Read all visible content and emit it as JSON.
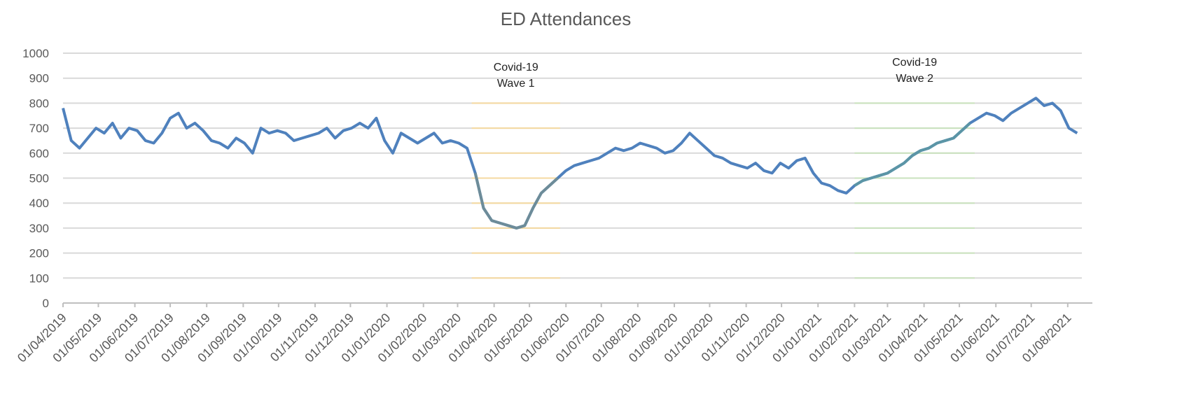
{
  "chart_data": {
    "type": "line",
    "title": "ED Attendances",
    "x": [
      "01/04/2019",
      "08/04/2019",
      "15/04/2019",
      "22/04/2019",
      "29/04/2019",
      "06/05/2019",
      "13/05/2019",
      "20/05/2019",
      "27/05/2019",
      "03/06/2019",
      "10/06/2019",
      "17/06/2019",
      "24/06/2019",
      "01/07/2019",
      "08/07/2019",
      "15/07/2019",
      "22/07/2019",
      "29/07/2019",
      "05/08/2019",
      "12/08/2019",
      "19/08/2019",
      "26/08/2019",
      "02/09/2019",
      "09/09/2019",
      "16/09/2019",
      "23/09/2019",
      "30/09/2019",
      "07/10/2019",
      "14/10/2019",
      "21/10/2019",
      "28/10/2019",
      "04/11/2019",
      "11/11/2019",
      "18/11/2019",
      "25/11/2019",
      "02/12/2019",
      "09/12/2019",
      "16/12/2019",
      "23/12/2019",
      "30/12/2019",
      "06/01/2020",
      "13/01/2020",
      "20/01/2020",
      "27/01/2020",
      "03/02/2020",
      "10/02/2020",
      "17/02/2020",
      "24/02/2020",
      "02/03/2020",
      "09/03/2020",
      "16/03/2020",
      "23/03/2020",
      "30/03/2020",
      "06/04/2020",
      "13/04/2020",
      "20/04/2020",
      "27/04/2020",
      "04/05/2020",
      "11/05/2020",
      "18/05/2020",
      "25/05/2020",
      "01/06/2020",
      "08/06/2020",
      "15/06/2020",
      "22/06/2020",
      "29/06/2020",
      "06/07/2020",
      "13/07/2020",
      "20/07/2020",
      "27/07/2020",
      "03/08/2020",
      "10/08/2020",
      "17/08/2020",
      "24/08/2020",
      "31/08/2020",
      "07/09/2020",
      "14/09/2020",
      "21/09/2020",
      "28/09/2020",
      "05/10/2020",
      "12/10/2020",
      "19/10/2020",
      "26/10/2020",
      "02/11/2020",
      "09/11/2020",
      "16/11/2020",
      "23/11/2020",
      "30/11/2020",
      "07/12/2020",
      "14/12/2020",
      "21/12/2020",
      "28/12/2020",
      "04/01/2021",
      "11/01/2021",
      "18/01/2021",
      "25/01/2021",
      "01/02/2021",
      "08/02/2021",
      "15/02/2021",
      "22/02/2021",
      "01/03/2021",
      "08/03/2021",
      "15/03/2021",
      "22/03/2021",
      "29/03/2021",
      "05/04/2021",
      "12/04/2021",
      "19/04/2021",
      "26/04/2021",
      "03/05/2021",
      "10/05/2021",
      "17/05/2021",
      "24/05/2021",
      "31/05/2021",
      "07/06/2021",
      "14/06/2021",
      "21/06/2021",
      "28/06/2021",
      "05/07/2021",
      "12/07/2021",
      "19/07/2021",
      "26/07/2021",
      "02/08/2021",
      "09/08/2021"
    ],
    "series": [
      {
        "color": "#4f81bd",
        "values": [
          780,
          650,
          620,
          660,
          700,
          680,
          720,
          660,
          700,
          690,
          650,
          640,
          680,
          740,
          760,
          700,
          720,
          690,
          650,
          640,
          620,
          660,
          640,
          600,
          700,
          680,
          690,
          680,
          650,
          660,
          670,
          680,
          700,
          660,
          690,
          700,
          720,
          700,
          740,
          650,
          600,
          680,
          660,
          640,
          660,
          680,
          640,
          650,
          640,
          620,
          520,
          380,
          330,
          320,
          310,
          300,
          310,
          380,
          440,
          470,
          500,
          530,
          550,
          560,
          570,
          580,
          600,
          620,
          610,
          620,
          640,
          630,
          620,
          600,
          610,
          640,
          680,
          650,
          620,
          590,
          580,
          560,
          550,
          540,
          560,
          530,
          520,
          560,
          540,
          570,
          580,
          520,
          480,
          470,
          450,
          440,
          470,
          490,
          500,
          510,
          520,
          540,
          560,
          590,
          610,
          620,
          640,
          650,
          660,
          690,
          720,
          740,
          760,
          750,
          730,
          760,
          780,
          800,
          820,
          790,
          800,
          770,
          700,
          680
        ]
      }
    ],
    "xlim": [
      "01/04/2019",
      "13/08/2021"
    ],
    "xticks": [
      "01/04/2019",
      "01/05/2019",
      "01/06/2019",
      "01/07/2019",
      "01/08/2019",
      "01/09/2019",
      "01/10/2019",
      "01/11/2019",
      "01/12/2019",
      "01/01/2020",
      "01/02/2020",
      "01/03/2020",
      "01/04/2020",
      "01/05/2020",
      "01/06/2020",
      "01/07/2020",
      "01/08/2020",
      "01/09/2020",
      "01/10/2020",
      "01/11/2020",
      "01/12/2020",
      "01/01/2021",
      "01/02/2021",
      "01/03/2021",
      "01/04/2021",
      "01/05/2021",
      "01/06/2021",
      "01/07/2021",
      "01/08/2021"
    ],
    "ylim": [
      0,
      1000
    ],
    "yticks": [
      0,
      100,
      200,
      300,
      400,
      500,
      600,
      700,
      800,
      900,
      1000
    ],
    "grid": true,
    "annotations": [
      {
        "text": [
          "Covid-19",
          "Wave 1"
        ],
        "start": "13/03/2020",
        "end": "27/05/2020",
        "color": "#f5d9a0",
        "line_color": "#6d8c99"
      },
      {
        "text": [
          "Covid-19",
          "Wave 2"
        ],
        "start": "01/02/2021",
        "end": "14/05/2021",
        "color": "#c9e2bd",
        "line_color": "#5b95a6"
      }
    ]
  }
}
